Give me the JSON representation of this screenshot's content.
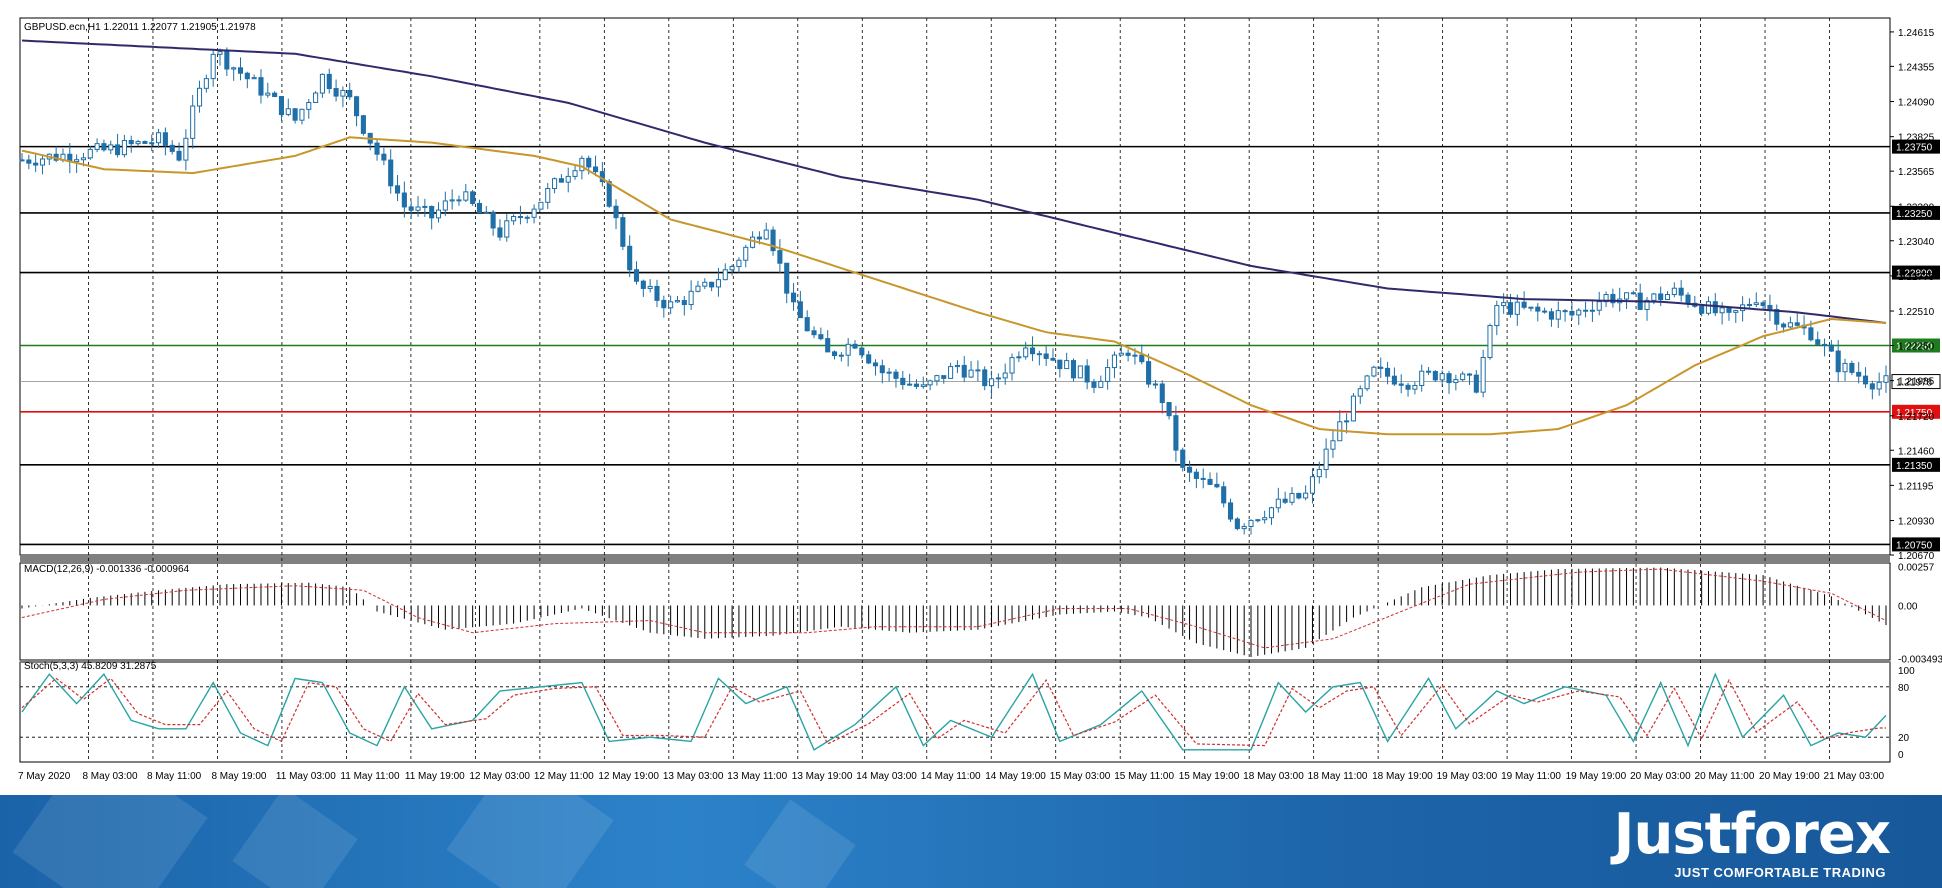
{
  "chart_data": {
    "type": "candlestick",
    "symbol_header": "GBPUSD.ecn,H1  1.22011 1.22077 1.21905 1.21978",
    "price_range": [
      1.2067,
      1.2472
    ],
    "y_ticks": [
      "1.24615",
      "1.24355",
      "1.24090",
      "1.23825",
      "1.23565",
      "1.23300",
      "1.23040",
      "1.22775",
      "1.22510",
      "1.22250",
      "1.21985",
      "1.21720",
      "1.21460",
      "1.21195",
      "1.20930",
      "1.20670"
    ],
    "x_labels": [
      "7 May 2020",
      "8 May 03:00",
      "8 May 11:00",
      "8 May 19:00",
      "11 May 03:00",
      "11 May 11:00",
      "11 May 19:00",
      "12 May 03:00",
      "12 May 11:00",
      "12 May 19:00",
      "13 May 03:00",
      "13 May 11:00",
      "13 May 19:00",
      "14 May 03:00",
      "14 May 11:00",
      "14 May 19:00",
      "15 May 03:00",
      "15 May 11:00",
      "15 May 19:00",
      "18 May 03:00",
      "18 May 11:00",
      "18 May 19:00",
      "19 May 03:00",
      "19 May 11:00",
      "19 May 19:00",
      "20 May 03:00",
      "20 May 11:00",
      "20 May 19:00",
      "21 May 03:00"
    ],
    "levels": [
      {
        "price": 1.2375,
        "label": "1.23750",
        "color": "#000000"
      },
      {
        "price": 1.2325,
        "label": "1.23250",
        "color": "#000000"
      },
      {
        "price": 1.228,
        "label": "1.22800",
        "color": "#000000"
      },
      {
        "price": 1.2225,
        "label": "1.22250",
        "color": "#1e7b1e"
      },
      {
        "price": 1.2175,
        "label": "1.21750",
        "color": "#e01010"
      },
      {
        "price": 1.2135,
        "label": "1.21350",
        "color": "#000000"
      },
      {
        "price": 1.2075,
        "label": "1.20750",
        "color": "#000000"
      }
    ],
    "current_price": {
      "price": 1.21978,
      "label": "1.21978"
    },
    "close_anchors": [
      [
        0,
        1.2365
      ],
      [
        12,
        1.2372
      ],
      [
        20,
        1.238
      ],
      [
        23,
        1.2368
      ],
      [
        28,
        1.2448
      ],
      [
        35,
        1.2418
      ],
      [
        40,
        1.2395
      ],
      [
        44,
        1.2428
      ],
      [
        48,
        1.241
      ],
      [
        51,
        1.238
      ],
      [
        56,
        1.233
      ],
      [
        60,
        1.2322
      ],
      [
        64,
        1.234
      ],
      [
        70,
        1.231
      ],
      [
        76,
        1.2335
      ],
      [
        82,
        1.2368
      ],
      [
        86,
        1.2335
      ],
      [
        90,
        1.227
      ],
      [
        95,
        1.2255
      ],
      [
        100,
        1.2268
      ],
      [
        104,
        1.2285
      ],
      [
        109,
        1.2318
      ],
      [
        113,
        1.2252
      ],
      [
        118,
        1.2218
      ],
      [
        122,
        1.2228
      ],
      [
        126,
        1.2205
      ],
      [
        132,
        1.2192
      ],
      [
        137,
        1.221
      ],
      [
        142,
        1.2195
      ],
      [
        147,
        1.2228
      ],
      [
        152,
        1.2212
      ],
      [
        157,
        1.2198
      ],
      [
        162,
        1.2222
      ],
      [
        167,
        1.2185
      ],
      [
        170,
        1.213
      ],
      [
        175,
        1.2115
      ],
      [
        178,
        1.209
      ],
      [
        184,
        1.2105
      ],
      [
        188,
        1.2112
      ],
      [
        193,
        1.2165
      ],
      [
        198,
        1.2205
      ],
      [
        203,
        1.2198
      ],
      [
        208,
        1.2205
      ],
      [
        213,
        1.2195
      ],
      [
        216,
        1.2255
      ],
      [
        222,
        1.225
      ],
      [
        227,
        1.2248
      ],
      [
        232,
        1.2262
      ],
      [
        237,
        1.2258
      ],
      [
        242,
        1.2265
      ],
      [
        246,
        1.2255
      ],
      [
        250,
        1.2245
      ],
      [
        254,
        1.2262
      ],
      [
        258,
        1.2242
      ],
      [
        262,
        1.2235
      ],
      [
        266,
        1.221
      ],
      [
        271,
        1.2198
      ],
      [
        273,
        1.2197
      ]
    ],
    "sma_slow_anchors": [
      [
        0,
        1.2455
      ],
      [
        20,
        1.245
      ],
      [
        40,
        1.2445
      ],
      [
        60,
        1.2428
      ],
      [
        80,
        1.2408
      ],
      [
        100,
        1.2378
      ],
      [
        120,
        1.2352
      ],
      [
        140,
        1.2335
      ],
      [
        160,
        1.231
      ],
      [
        180,
        1.2285
      ],
      [
        200,
        1.2268
      ],
      [
        220,
        1.226
      ],
      [
        240,
        1.2258
      ],
      [
        260,
        1.225
      ],
      [
        273,
        1.2242
      ]
    ],
    "sma_fast_anchors": [
      [
        0,
        1.2372
      ],
      [
        12,
        1.2358
      ],
      [
        25,
        1.2355
      ],
      [
        40,
        1.2368
      ],
      [
        48,
        1.2382
      ],
      [
        60,
        1.2378
      ],
      [
        75,
        1.2368
      ],
      [
        82,
        1.236
      ],
      [
        95,
        1.232
      ],
      [
        110,
        1.23
      ],
      [
        125,
        1.2275
      ],
      [
        140,
        1.225
      ],
      [
        150,
        1.2235
      ],
      [
        160,
        1.2228
      ],
      [
        170,
        1.2205
      ],
      [
        180,
        1.218
      ],
      [
        190,
        1.2162
      ],
      [
        200,
        1.2158
      ],
      [
        215,
        1.2158
      ],
      [
        225,
        1.2162
      ],
      [
        235,
        1.218
      ],
      [
        245,
        1.221
      ],
      [
        255,
        1.2232
      ],
      [
        265,
        1.2245
      ],
      [
        273,
        1.2242
      ]
    ],
    "macd": {
      "header": "MACD(12,26,9) -0.001336 -0.000964",
      "range": [
        -0.0036,
        0.0028
      ],
      "y_ticks": [
        "0.00257",
        "0.00",
        "-0.003493"
      ],
      "hist_anchors": [
        [
          0,
          -0.0002
        ],
        [
          10,
          0.0005
        ],
        [
          20,
          0.001
        ],
        [
          30,
          0.0014
        ],
        [
          42,
          0.0015
        ],
        [
          48,
          0.0012
        ],
        [
          52,
          -0.0004
        ],
        [
          62,
          -0.0016
        ],
        [
          72,
          -0.0012
        ],
        [
          82,
          -0.0002
        ],
        [
          92,
          -0.0018
        ],
        [
          100,
          -0.0022
        ],
        [
          110,
          -0.002
        ],
        [
          120,
          -0.0014
        ],
        [
          130,
          -0.0018
        ],
        [
          140,
          -0.0016
        ],
        [
          152,
          -0.0006
        ],
        [
          160,
          -0.0004
        ],
        [
          165,
          -0.0008
        ],
        [
          172,
          -0.0025
        ],
        [
          180,
          -0.0034
        ],
        [
          188,
          -0.0028
        ],
        [
          195,
          -0.0008
        ],
        [
          205,
          0.0012
        ],
        [
          215,
          0.002
        ],
        [
          225,
          0.0024
        ],
        [
          240,
          0.0025
        ],
        [
          255,
          0.002
        ],
        [
          265,
          0.0006
        ],
        [
          273,
          -0.0013
        ]
      ],
      "signal_anchors": [
        [
          0,
          -0.0008
        ],
        [
          12,
          0.0004
        ],
        [
          24,
          0.001
        ],
        [
          40,
          0.0013
        ],
        [
          50,
          0.001
        ],
        [
          58,
          -0.0008
        ],
        [
          66,
          -0.0018
        ],
        [
          78,
          -0.0012
        ],
        [
          92,
          -0.001
        ],
        [
          100,
          -0.0018
        ],
        [
          115,
          -0.0018
        ],
        [
          125,
          -0.0014
        ],
        [
          140,
          -0.0014
        ],
        [
          152,
          -0.0002
        ],
        [
          162,
          -0.0002
        ],
        [
          172,
          -0.0014
        ],
        [
          182,
          -0.0028
        ],
        [
          192,
          -0.0022
        ],
        [
          202,
          -0.0004
        ],
        [
          212,
          0.0014
        ],
        [
          228,
          0.0022
        ],
        [
          240,
          0.0024
        ],
        [
          255,
          0.0016
        ],
        [
          265,
          0.0008
        ],
        [
          273,
          -0.001
        ]
      ]
    },
    "stochastic": {
      "header": "Stoch(5,3,3) 45.8209 31.2875",
      "range": [
        0,
        100
      ],
      "y_ticks": [
        "100",
        "80",
        "20",
        "0"
      ],
      "levels": [
        80,
        20
      ],
      "main_anchors": [
        [
          0,
          50
        ],
        [
          4,
          95
        ],
        [
          8,
          60
        ],
        [
          12,
          95
        ],
        [
          16,
          40
        ],
        [
          20,
          30
        ],
        [
          24,
          30
        ],
        [
          28,
          85
        ],
        [
          32,
          25
        ],
        [
          36,
          10
        ],
        [
          40,
          90
        ],
        [
          44,
          85
        ],
        [
          48,
          25
        ],
        [
          52,
          10
        ],
        [
          56,
          80
        ],
        [
          60,
          30
        ],
        [
          66,
          40
        ],
        [
          70,
          75
        ],
        [
          76,
          80
        ],
        [
          82,
          85
        ],
        [
          86,
          15
        ],
        [
          92,
          20
        ],
        [
          98,
          15
        ],
        [
          102,
          90
        ],
        [
          106,
          60
        ],
        [
          112,
          80
        ],
        [
          116,
          5
        ],
        [
          122,
          35
        ],
        [
          128,
          80
        ],
        [
          132,
          10
        ],
        [
          136,
          40
        ],
        [
          142,
          20
        ],
        [
          148,
          95
        ],
        [
          152,
          15
        ],
        [
          158,
          35
        ],
        [
          164,
          75
        ],
        [
          170,
          5
        ],
        [
          180,
          5
        ],
        [
          184,
          85
        ],
        [
          188,
          50
        ],
        [
          192,
          80
        ],
        [
          196,
          85
        ],
        [
          200,
          15
        ],
        [
          206,
          90
        ],
        [
          210,
          30
        ],
        [
          216,
          75
        ],
        [
          220,
          60
        ],
        [
          226,
          80
        ],
        [
          232,
          70
        ],
        [
          236,
          15
        ],
        [
          240,
          85
        ],
        [
          244,
          10
        ],
        [
          248,
          95
        ],
        [
          252,
          20
        ],
        [
          258,
          70
        ],
        [
          262,
          10
        ],
        [
          266,
          25
        ],
        [
          270,
          20
        ],
        [
          273,
          46
        ]
      ],
      "signal_anchors": [
        [
          0,
          55
        ],
        [
          5,
          90
        ],
        [
          9,
          65
        ],
        [
          13,
          90
        ],
        [
          17,
          48
        ],
        [
          21,
          35
        ],
        [
          26,
          35
        ],
        [
          30,
          75
        ],
        [
          34,
          30
        ],
        [
          38,
          15
        ],
        [
          42,
          85
        ],
        [
          46,
          80
        ],
        [
          50,
          30
        ],
        [
          54,
          15
        ],
        [
          58,
          72
        ],
        [
          62,
          35
        ],
        [
          68,
          42
        ],
        [
          72,
          70
        ],
        [
          78,
          78
        ],
        [
          84,
          80
        ],
        [
          88,
          22
        ],
        [
          94,
          22
        ],
        [
          100,
          20
        ],
        [
          104,
          80
        ],
        [
          108,
          62
        ],
        [
          114,
          75
        ],
        [
          118,
          12
        ],
        [
          124,
          36
        ],
        [
          130,
          72
        ],
        [
          134,
          18
        ],
        [
          138,
          40
        ],
        [
          144,
          25
        ],
        [
          150,
          88
        ],
        [
          154,
          22
        ],
        [
          160,
          38
        ],
        [
          166,
          70
        ],
        [
          172,
          12
        ],
        [
          182,
          10
        ],
        [
          186,
          78
        ],
        [
          190,
          55
        ],
        [
          194,
          75
        ],
        [
          198,
          80
        ],
        [
          202,
          22
        ],
        [
          208,
          82
        ],
        [
          212,
          36
        ],
        [
          218,
          70
        ],
        [
          222,
          62
        ],
        [
          228,
          75
        ],
        [
          234,
          68
        ],
        [
          238,
          22
        ],
        [
          242,
          78
        ],
        [
          246,
          18
        ],
        [
          250,
          88
        ],
        [
          254,
          26
        ],
        [
          260,
          62
        ],
        [
          264,
          18
        ],
        [
          268,
          26
        ],
        [
          272,
          31
        ]
      ]
    }
  },
  "colors": {
    "bull": "#ffffff",
    "bear": "#1f6fa8",
    "candle_outline": "#1f6fa8",
    "sma_slow": "#2e2a6b",
    "sma_fast": "#c8962a",
    "macd_signal": "#d03030",
    "stoch_main": "#2aa3a3",
    "stoch_signal": "#d03030"
  },
  "branding": {
    "logo": "Justforex",
    "tagline": "JUST COMFORTABLE TRADING"
  }
}
